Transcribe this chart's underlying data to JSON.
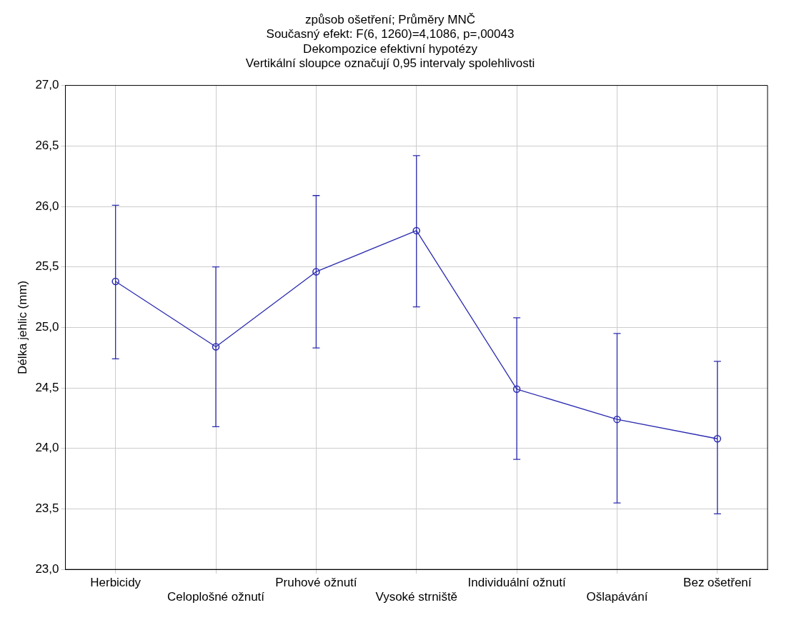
{
  "chart_data": {
    "type": "line",
    "title": "způsob ošetření; Průměry MNČ",
    "subtitle": "Současný efekt: F(6, 1260)=4,1086, p=,00043",
    "annotations": [
      "Dekompozice efektivní hypotézy",
      "Vertikální sloupce označují 0,95 intervaly spolehlivosti"
    ],
    "ylabel": "Délka jehlic (mm)",
    "categories": [
      "Herbicidy",
      "Celoplošné ožnutí",
      "Pruhové ožnutí",
      "Vysoké strniště",
      "Individuální ožnutí",
      "Ošlapávání",
      "Bez ošetření"
    ],
    "series": [
      {
        "color": "#2b2bb0",
        "values": [
          25.38,
          24.84,
          25.46,
          25.8,
          24.49,
          24.24,
          24.08
        ],
        "errors": [
          [
            24.74,
            26.01
          ],
          [
            24.18,
            25.5
          ],
          [
            24.83,
            26.09
          ],
          [
            25.17,
            26.42
          ],
          [
            23.91,
            25.08
          ],
          [
            23.55,
            24.95
          ],
          [
            23.46,
            24.72
          ]
        ]
      }
    ],
    "ylim": [
      23,
      27
    ],
    "yticks": [
      {
        "value": 23,
        "label": "23,0"
      },
      {
        "value": 23.5,
        "label": "23,5"
      },
      {
        "value": 24,
        "label": "24,0"
      },
      {
        "value": 24.5,
        "label": "24,5"
      },
      {
        "value": 25,
        "label": "25,0"
      },
      {
        "value": 25.5,
        "label": "25,5"
      },
      {
        "value": 26,
        "label": "26,0"
      },
      {
        "value": 26.5,
        "label": "26,5"
      },
      {
        "value": 27,
        "label": "27,0"
      }
    ],
    "grid": true,
    "marker": "circle",
    "line_style": "solid",
    "legend": false
  }
}
